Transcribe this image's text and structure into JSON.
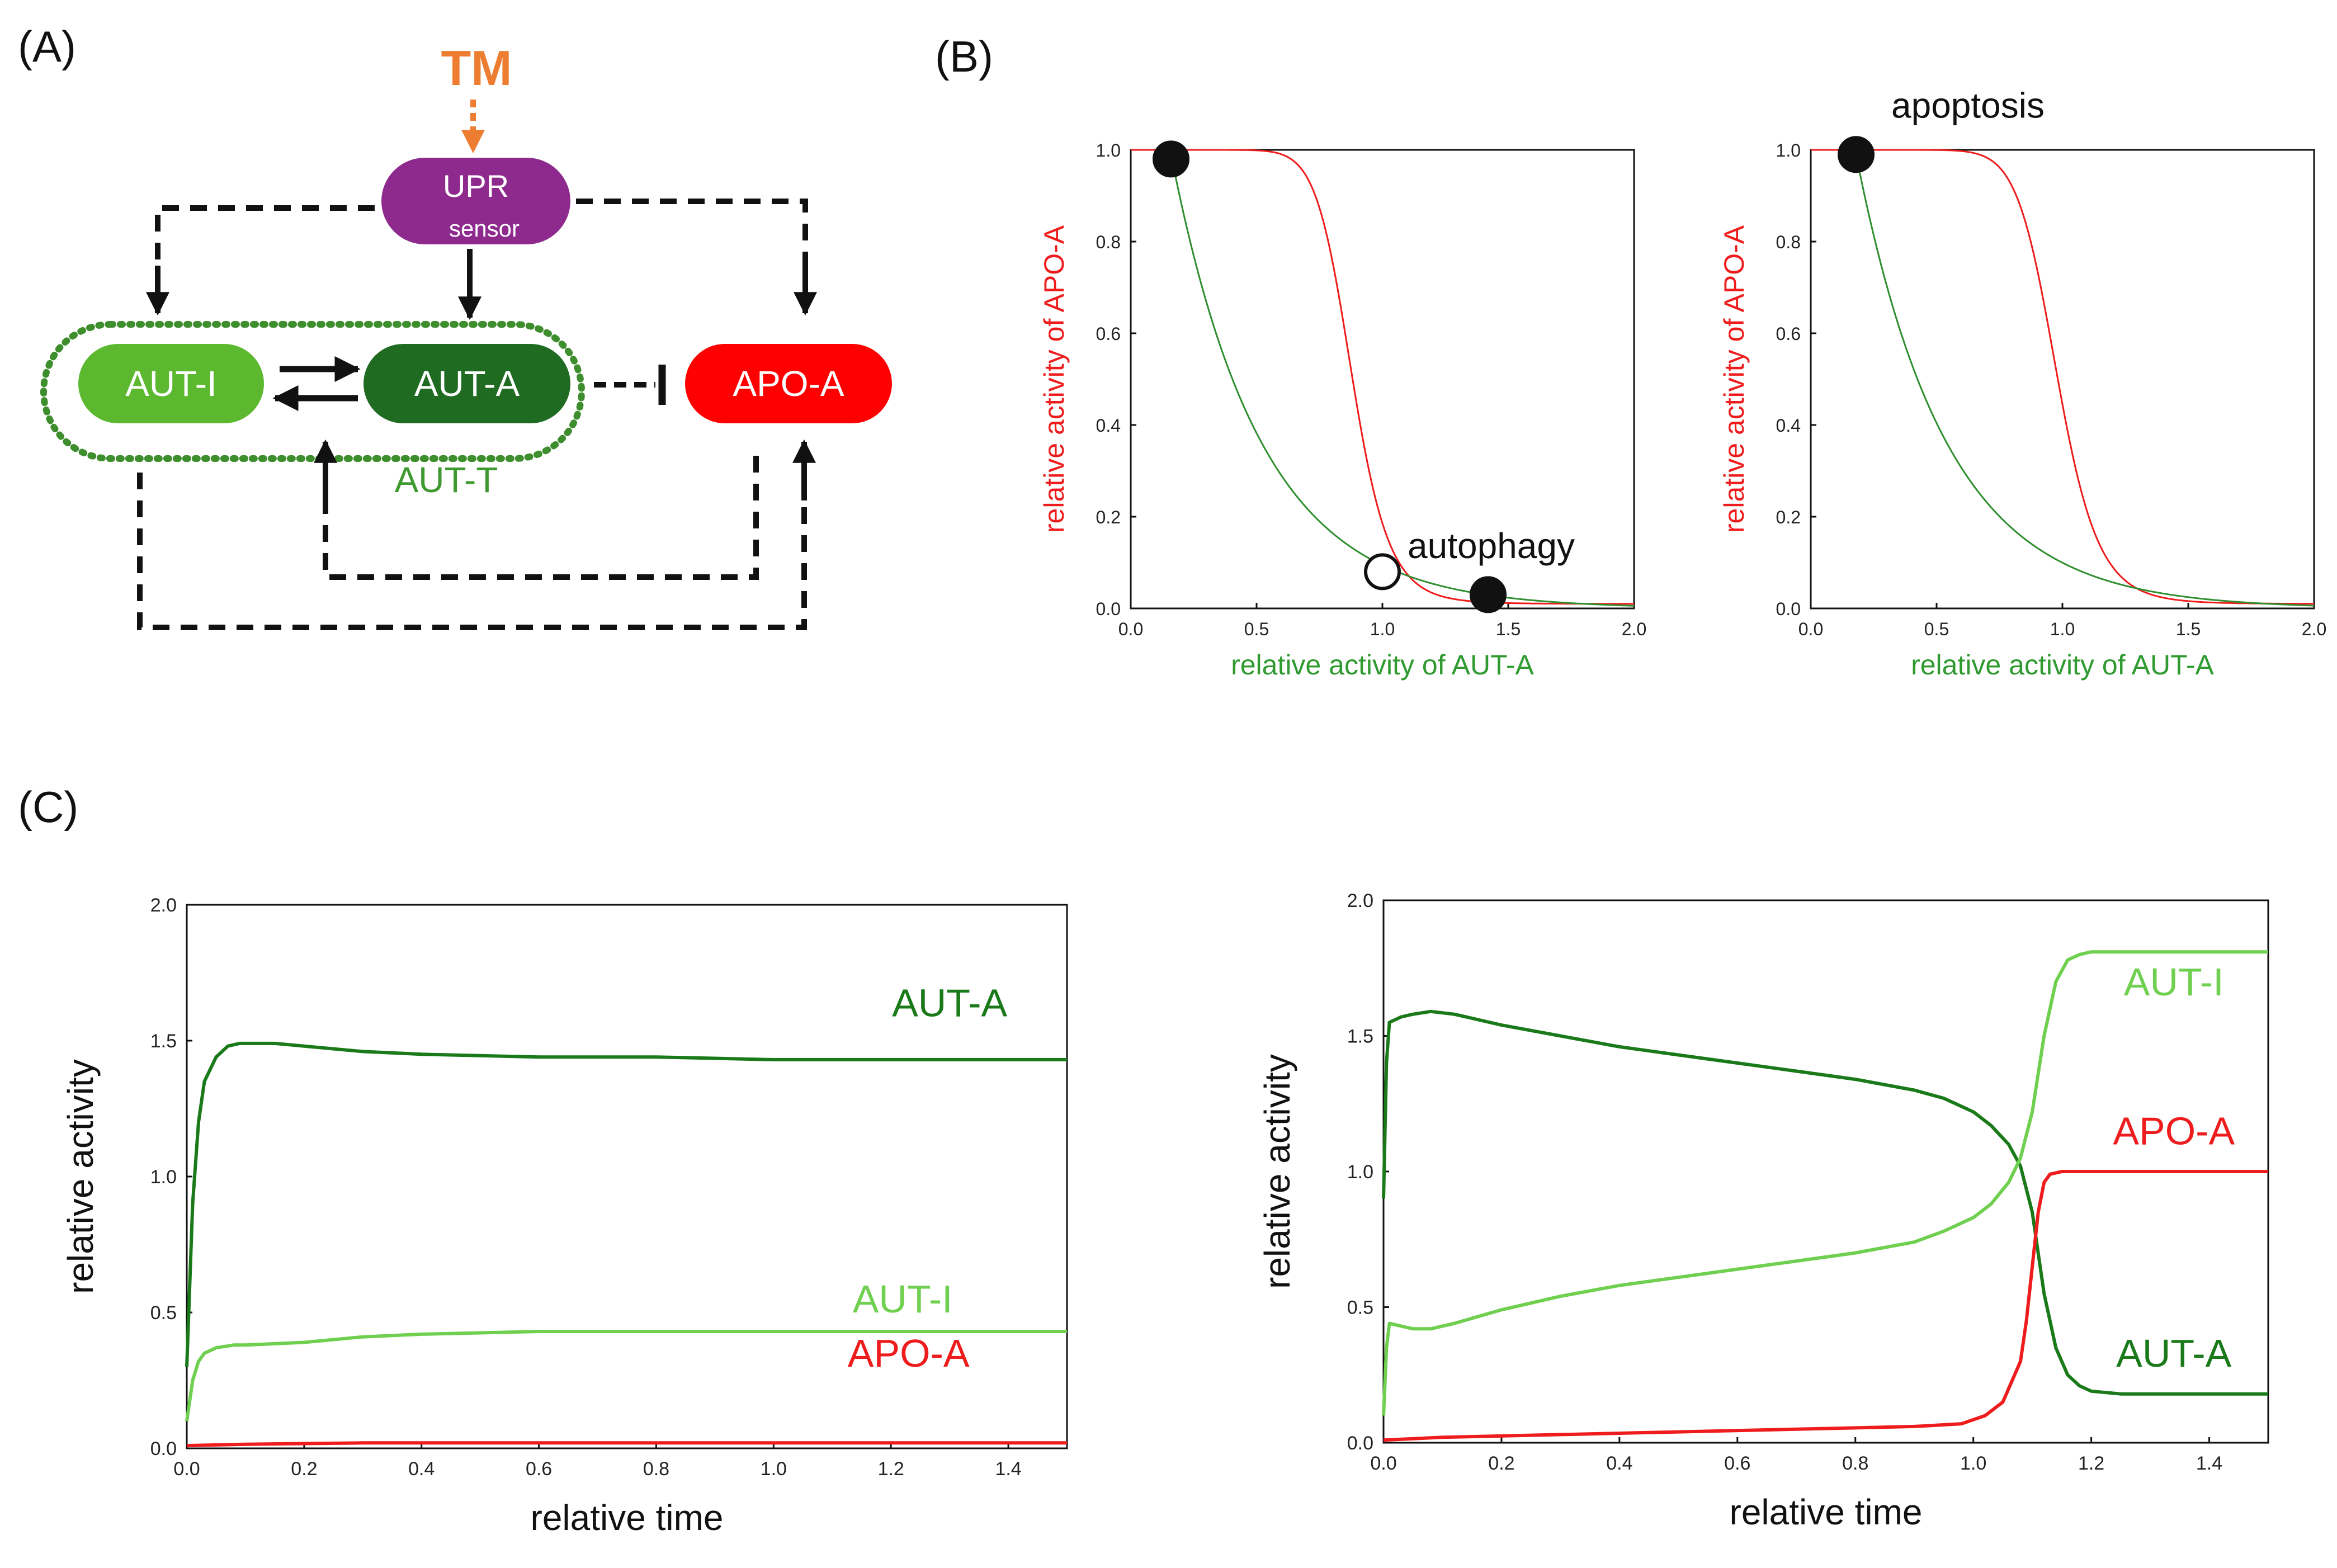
{
  "panels": {
    "a": {
      "label": "(A)"
    },
    "b": {
      "label": "(B)"
    },
    "c": {
      "label": "(C)"
    }
  },
  "network": {
    "stimulus": "TM",
    "upr_sensor": {
      "line1": "UPR",
      "line2": "sensor"
    },
    "aut_i": "AUT-I",
    "aut_a": "AUT-A",
    "apo_a": "APO-A",
    "aut_t": "AUT-T"
  },
  "colors": {
    "red": "#ee1c1c",
    "dark_green": "#1a7a1a",
    "light_green": "#6fcf4f",
    "mid_green": "#2f8f2f",
    "purple": "#8e2a8e",
    "orange": "#ed7d31",
    "aut_i_node": "#5cb82e",
    "aut_a_node": "#1f6b22",
    "apo_node": "#ff0000"
  },
  "chart_data": [
    {
      "id": "b_left",
      "type": "line",
      "xlabel": "relative activity of AUT-A",
      "ylabel": "relative activity of APO-A",
      "xlim": [
        0,
        2.0
      ],
      "ylim": [
        0,
        1.0
      ],
      "xticks": [
        "0.0",
        "0.5",
        "1.0",
        "1.5",
        "2.0"
      ],
      "yticks": [
        "0.0",
        "0.2",
        "0.4",
        "0.6",
        "0.8",
        "1.0"
      ],
      "curves": [
        {
          "color": "red",
          "shape": "sigmoid",
          "half": 0.88,
          "n": 12
        },
        {
          "color": "green",
          "shape": "decay",
          "start": 0.16,
          "k": 2.8
        }
      ],
      "points": [
        {
          "x": 0.16,
          "y": 0.98,
          "filled": true
        },
        {
          "x": 1.0,
          "y": 0.08,
          "filled": false
        },
        {
          "x": 1.42,
          "y": 0.03,
          "filled": true
        }
      ],
      "annotation": {
        "text": "autophagy",
        "x": 1.1,
        "y": 0.11
      }
    },
    {
      "id": "b_right",
      "type": "line",
      "xlabel": "relative activity of AUT-A",
      "ylabel": "relative activity of APO-A",
      "xlim": [
        0,
        2.0
      ],
      "ylim": [
        0,
        1.0
      ],
      "xticks": [
        "0.0",
        "0.5",
        "1.0",
        "1.5",
        "2.0"
      ],
      "yticks": [
        "0.0",
        "0.2",
        "0.4",
        "0.6",
        "0.8",
        "1.0"
      ],
      "curves": [
        {
          "color": "red",
          "shape": "sigmoid",
          "half": 0.98,
          "n": 12
        },
        {
          "color": "green",
          "shape": "decay",
          "start": 0.18,
          "k": 2.8
        }
      ],
      "points": [
        {
          "x": 0.18,
          "y": 0.99,
          "filled": true
        }
      ],
      "annotation": {
        "text": "apoptosis",
        "x": 0.32,
        "y": 1.07
      }
    },
    {
      "id": "c_left",
      "type": "line",
      "xlabel": "relative time",
      "ylabel": "relative activity",
      "xlim": [
        0,
        1.5
      ],
      "ylim": [
        0,
        2.0
      ],
      "xticks": [
        "0.0",
        "0.2",
        "0.4",
        "0.6",
        "0.8",
        "1.0",
        "1.2",
        "1.4"
      ],
      "yticks": [
        "0.0",
        "0.5",
        "1.0",
        "1.5",
        "2.0"
      ],
      "series": [
        {
          "name": "AUT-A",
          "color": "dark_green",
          "x": [
            0,
            0.01,
            0.02,
            0.03,
            0.05,
            0.07,
            0.09,
            0.12,
            0.15,
            0.2,
            0.3,
            0.4,
            0.6,
            0.8,
            1.0,
            1.2,
            1.5
          ],
          "y": [
            0.3,
            0.9,
            1.2,
            1.35,
            1.44,
            1.48,
            1.49,
            1.49,
            1.49,
            1.48,
            1.46,
            1.45,
            1.44,
            1.44,
            1.43,
            1.43,
            1.43
          ]
        },
        {
          "name": "AUT-I",
          "color": "light_green",
          "x": [
            0,
            0.01,
            0.02,
            0.03,
            0.05,
            0.08,
            0.1,
            0.2,
            0.3,
            0.4,
            0.6,
            0.8,
            1.0,
            1.2,
            1.5
          ],
          "y": [
            0.1,
            0.25,
            0.32,
            0.35,
            0.37,
            0.38,
            0.38,
            0.39,
            0.41,
            0.42,
            0.43,
            0.43,
            0.43,
            0.43,
            0.43
          ]
        },
        {
          "name": "APO-A",
          "color": "red",
          "x": [
            0,
            0.1,
            0.3,
            0.6,
            1.0,
            1.5
          ],
          "y": [
            0.01,
            0.015,
            0.02,
            0.02,
            0.02,
            0.02
          ]
        }
      ],
      "labels": [
        {
          "text": "AUT-A",
          "x": 1.3,
          "y": 1.59,
          "color": "dark_green"
        },
        {
          "text": "AUT-I",
          "x": 1.22,
          "y": 0.5,
          "color": "light_green"
        },
        {
          "text": "APO-A",
          "x": 1.23,
          "y": 0.3,
          "color": "red"
        }
      ]
    },
    {
      "id": "c_right",
      "type": "line",
      "xlabel": "relative time",
      "ylabel": "relative activity",
      "xlim": [
        0,
        1.5
      ],
      "ylim": [
        0,
        2.0
      ],
      "xticks": [
        "0.0",
        "0.2",
        "0.4",
        "0.6",
        "0.8",
        "1.0",
        "1.2",
        "1.4"
      ],
      "yticks": [
        "0.0",
        "0.5",
        "1.0",
        "1.5",
        "2.0"
      ],
      "series": [
        {
          "name": "AUT-A",
          "color": "dark_green",
          "x": [
            0,
            0.005,
            0.01,
            0.03,
            0.05,
            0.08,
            0.12,
            0.2,
            0.3,
            0.4,
            0.5,
            0.6,
            0.7,
            0.8,
            0.9,
            0.95,
            1.0,
            1.03,
            1.06,
            1.08,
            1.1,
            1.12,
            1.14,
            1.16,
            1.18,
            1.2,
            1.25,
            1.3,
            1.5
          ],
          "y": [
            0.9,
            1.4,
            1.55,
            1.57,
            1.58,
            1.59,
            1.58,
            1.54,
            1.5,
            1.46,
            1.43,
            1.4,
            1.37,
            1.34,
            1.3,
            1.27,
            1.22,
            1.17,
            1.1,
            1.02,
            0.85,
            0.55,
            0.35,
            0.25,
            0.21,
            0.19,
            0.18,
            0.18,
            0.18
          ]
        },
        {
          "name": "AUT-I",
          "color": "light_green",
          "x": [
            0,
            0.005,
            0.01,
            0.03,
            0.05,
            0.08,
            0.12,
            0.2,
            0.3,
            0.4,
            0.5,
            0.6,
            0.7,
            0.8,
            0.9,
            0.95,
            1.0,
            1.03,
            1.06,
            1.08,
            1.1,
            1.12,
            1.14,
            1.16,
            1.18,
            1.2,
            1.25,
            1.3,
            1.5
          ],
          "y": [
            0.1,
            0.35,
            0.44,
            0.43,
            0.42,
            0.42,
            0.44,
            0.49,
            0.54,
            0.58,
            0.61,
            0.64,
            0.67,
            0.7,
            0.74,
            0.78,
            0.83,
            0.88,
            0.96,
            1.05,
            1.22,
            1.5,
            1.7,
            1.78,
            1.8,
            1.81,
            1.81,
            1.81,
            1.81
          ]
        },
        {
          "name": "APO-A",
          "color": "red",
          "x": [
            0,
            0.1,
            0.3,
            0.5,
            0.7,
            0.9,
            0.98,
            1.02,
            1.05,
            1.08,
            1.09,
            1.1,
            1.11,
            1.12,
            1.13,
            1.15,
            1.2,
            1.3,
            1.5
          ],
          "y": [
            0.01,
            0.02,
            0.03,
            0.04,
            0.05,
            0.06,
            0.07,
            0.1,
            0.15,
            0.3,
            0.45,
            0.65,
            0.85,
            0.96,
            0.99,
            1.0,
            1.0,
            1.0,
            1.0
          ]
        }
      ],
      "labels": [
        {
          "text": "AUT-I",
          "x": 1.34,
          "y": 1.65,
          "color": "light_green"
        },
        {
          "text": "APO-A",
          "x": 1.34,
          "y": 1.1,
          "color": "red"
        },
        {
          "text": "AUT-A",
          "x": 1.34,
          "y": 0.28,
          "color": "dark_green"
        }
      ]
    }
  ]
}
